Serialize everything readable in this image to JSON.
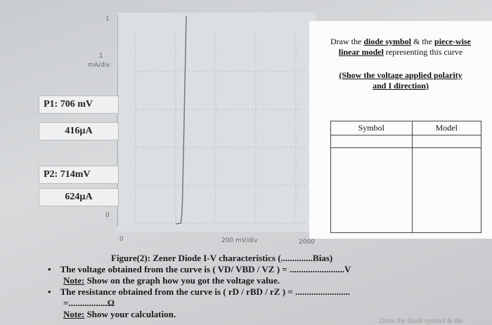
{
  "screen": {
    "y_top": "1",
    "y_mid": ".1",
    "y_unit": "mA/div",
    "y_zero": "0",
    "x_zero": "0",
    "x_unit": "200 mV/div",
    "x_end": "2000"
  },
  "readings": [
    "P1: 706 mV",
    "416µA",
    "P2: 714mV",
    "624µA"
  ],
  "instructions": {
    "draw": [
      "Draw the ",
      "diode symbol",
      " & the ",
      "piece-wise linear model",
      " representing this curve"
    ],
    "polarity": "(Show the voltage applied polarity and I direction)",
    "table_headers": [
      "Symbol",
      "Model"
    ]
  },
  "caption": "Figure(2): Zener Diode I-V characteristics (..............Bias)",
  "bullets": [
    {
      "text": "The voltage obtained from the curve is ( VD/ VBD / VZ ) = ........................V",
      "note_label": "Note:",
      "note": " Show on the graph how you got the voltage value."
    },
    {
      "text": "The resistance obtained from the curve is ( rD / rBD / rZ ) = ........................",
      "continuation": "=.................Ω",
      "note_label": "Note:",
      "note": " Show your calculation."
    }
  ],
  "cut_text": "Draw the diode symbol & the"
}
